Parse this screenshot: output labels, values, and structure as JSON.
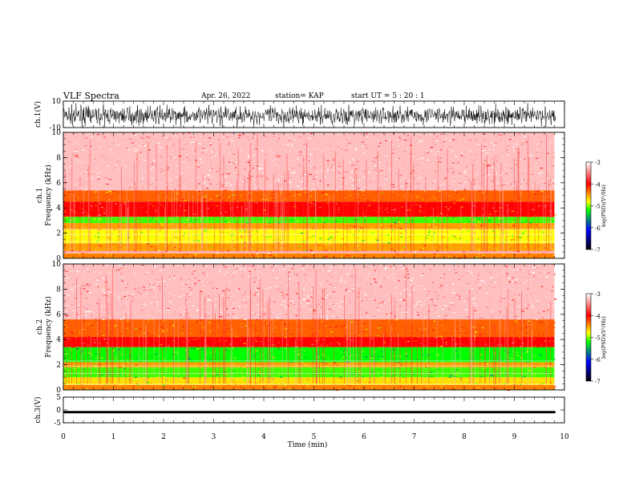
{
  "header": {
    "title": "VLF Spectra",
    "date": "Apr. 26, 2022",
    "station": "station= KAP",
    "start": "start  UT =   5  : 20 : 1"
  },
  "chart_data": [
    {
      "type": "line",
      "name": "ch1-waveform",
      "ylabel": "ch.1(V)",
      "ylim": [
        -10,
        10
      ],
      "yticks": [
        10,
        -10
      ],
      "xlim": [
        0,
        10
      ],
      "description_values": "dense black waveform oscillating between about -10 and 8 V over 0 to 9.8 min"
    },
    {
      "type": "heatmap",
      "name": "ch1-spectrogram",
      "ylabel": "ch.1\nFrequency  (kHz)",
      "ylim": [
        0,
        10
      ],
      "yticks": [
        0,
        2,
        4,
        6,
        8,
        10
      ],
      "xlim": [
        0,
        10
      ],
      "data_extent_min": 9.8,
      "bands_khz": [
        {
          "from": 0.0,
          "to": 0.4,
          "level": -4.2
        },
        {
          "from": 0.4,
          "to": 0.6,
          "level": -3.3
        },
        {
          "from": 0.6,
          "to": 1.2,
          "level": -4.3
        },
        {
          "from": 1.2,
          "to": 2.3,
          "level": -4.6
        },
        {
          "from": 2.3,
          "to": 2.8,
          "level": -4.3
        },
        {
          "from": 2.8,
          "to": 3.3,
          "level": -4.9
        },
        {
          "from": 3.3,
          "to": 4.5,
          "level": -3.8
        },
        {
          "from": 4.5,
          "to": 5.4,
          "level": -4.1
        },
        {
          "from": 5.4,
          "to": 10.0,
          "level": -3.2
        }
      ],
      "colorbar": {
        "label": "log(PSD)(V²/Hz)",
        "range": [
          -7,
          -3
        ],
        "ticks": [
          -3,
          -4,
          -5,
          -6,
          -7
        ],
        "tick_labels": [
          "-3",
          "-4",
          "-5",
          "-6",
          "-7"
        ]
      }
    },
    {
      "type": "heatmap",
      "name": "ch2-spectrogram",
      "ylabel": "ch.2\nFrequency  (kHz)",
      "ylim": [
        0,
        10
      ],
      "yticks": [
        0,
        2,
        4,
        6,
        8,
        10
      ],
      "xlim": [
        0,
        10
      ],
      "data_extent_min": 9.8,
      "bands_khz": [
        {
          "from": 0.0,
          "to": 0.4,
          "level": -4.2
        },
        {
          "from": 0.4,
          "to": 1.0,
          "level": -4.5
        },
        {
          "from": 1.0,
          "to": 1.8,
          "level": -4.9
        },
        {
          "from": 1.8,
          "to": 2.2,
          "level": -4.3
        },
        {
          "from": 2.2,
          "to": 3.4,
          "level": -5.0
        },
        {
          "from": 3.4,
          "to": 4.2,
          "level": -3.8
        },
        {
          "from": 4.2,
          "to": 5.6,
          "level": -4.1
        },
        {
          "from": 5.6,
          "to": 10.0,
          "level": -3.2
        }
      ],
      "colorbar": {
        "label": "log(PSD)(V²/Hz)",
        "range": [
          -7,
          -3
        ],
        "ticks": [
          -3,
          -4,
          -5,
          -6,
          -7
        ],
        "tick_labels": [
          "-3",
          "-4",
          "-5",
          "-6",
          "-7"
        ]
      }
    },
    {
      "type": "line",
      "name": "ch3-waveform",
      "ylabel": "ch.3(V)",
      "ylim": [
        -5,
        5
      ],
      "yticks": [
        5,
        0,
        -5
      ],
      "xlim": [
        0,
        10
      ],
      "band": [
        -1.3,
        -0.4
      ],
      "xlabel": "Time  (min)",
      "xticks": [
        0,
        1,
        2,
        3,
        4,
        5,
        6,
        7,
        8,
        9,
        10
      ],
      "xtick_labels": [
        "0",
        "1",
        "2",
        "3",
        "4",
        "5",
        "6",
        "7",
        "8",
        "9",
        "10"
      ]
    }
  ],
  "colors": {
    "waveform": "#000000",
    "colormap": [
      "#ffffff",
      "#ff0000",
      "#ffff00",
      "#00ff00",
      "#0000ff",
      "#000000"
    ]
  }
}
